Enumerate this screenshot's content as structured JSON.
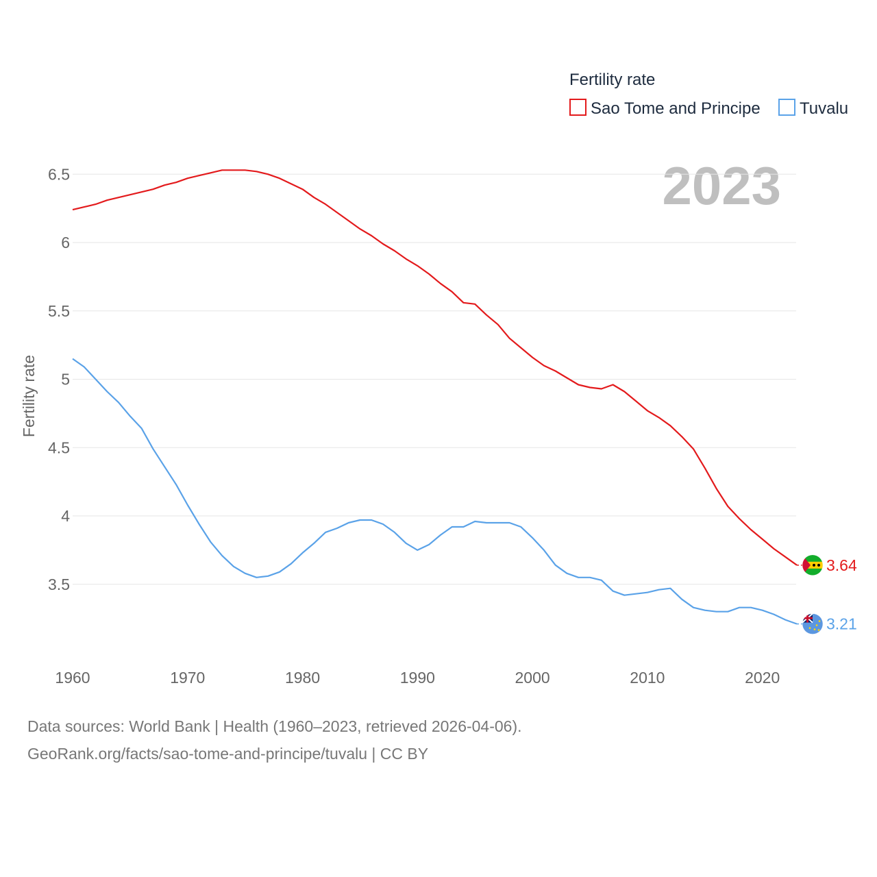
{
  "chart_data": {
    "type": "line",
    "legend_title": "Fertility rate",
    "legend_position": "top-right",
    "ylabel": "Fertility rate",
    "current_year": "2023",
    "xlim": [
      1960,
      2023
    ],
    "ylim": [
      3.0,
      6.6
    ],
    "x_ticks": [
      1960,
      1970,
      1980,
      1990,
      2000,
      2010,
      2020
    ],
    "y_ticks": [
      3.5,
      4,
      4.5,
      5,
      5.5,
      6,
      6.5
    ],
    "y_tick_labels": [
      "3.5",
      "4",
      "4.5",
      "5",
      "5.5",
      "6",
      "6.5"
    ],
    "x": [
      1960,
      1961,
      1962,
      1963,
      1964,
      1965,
      1966,
      1967,
      1968,
      1969,
      1970,
      1971,
      1972,
      1973,
      1974,
      1975,
      1976,
      1977,
      1978,
      1979,
      1980,
      1981,
      1982,
      1983,
      1984,
      1985,
      1986,
      1987,
      1988,
      1989,
      1990,
      1991,
      1992,
      1993,
      1994,
      1995,
      1996,
      1997,
      1998,
      1999,
      2000,
      2001,
      2002,
      2003,
      2004,
      2005,
      2006,
      2007,
      2008,
      2009,
      2010,
      2011,
      2012,
      2013,
      2014,
      2015,
      2016,
      2017,
      2018,
      2019,
      2020,
      2021,
      2022,
      2023
    ],
    "series": [
      {
        "name": "Sao Tome and Principe",
        "color": "#e31a1c",
        "end_label": "3.64",
        "flag": "sao-tome-flag",
        "values": [
          6.24,
          6.26,
          6.28,
          6.31,
          6.33,
          6.35,
          6.37,
          6.39,
          6.42,
          6.44,
          6.47,
          6.49,
          6.51,
          6.53,
          6.53,
          6.53,
          6.52,
          6.5,
          6.47,
          6.43,
          6.39,
          6.33,
          6.28,
          6.22,
          6.16,
          6.1,
          6.05,
          5.99,
          5.94,
          5.88,
          5.83,
          5.77,
          5.7,
          5.64,
          5.56,
          5.55,
          5.47,
          5.4,
          5.3,
          5.23,
          5.16,
          5.1,
          5.06,
          5.01,
          4.96,
          4.94,
          4.93,
          4.96,
          4.91,
          4.84,
          4.77,
          4.72,
          4.66,
          4.58,
          4.49,
          4.35,
          4.2,
          4.07,
          3.98,
          3.9,
          3.83,
          3.76,
          3.7,
          3.64
        ]
      },
      {
        "name": "Tuvalu",
        "color": "#5aa2e8",
        "end_label": "3.21",
        "flag": "tuvalu-flag",
        "values": [
          5.15,
          5.09,
          5.0,
          4.91,
          4.83,
          4.73,
          4.64,
          4.49,
          4.36,
          4.23,
          4.08,
          3.94,
          3.81,
          3.71,
          3.63,
          3.58,
          3.55,
          3.56,
          3.59,
          3.65,
          3.73,
          3.8,
          3.88,
          3.91,
          3.95,
          3.97,
          3.97,
          3.94,
          3.88,
          3.8,
          3.75,
          3.79,
          3.86,
          3.92,
          3.92,
          3.96,
          3.95,
          3.95,
          3.95,
          3.92,
          3.84,
          3.75,
          3.64,
          3.58,
          3.55,
          3.55,
          3.53,
          3.45,
          3.42,
          3.43,
          3.44,
          3.46,
          3.47,
          3.39,
          3.33,
          3.31,
          3.3,
          3.3,
          3.33,
          3.33,
          3.31,
          3.28,
          3.24,
          3.21
        ]
      }
    ]
  },
  "footer": {
    "sources": "Data sources: World Bank | Health (1960–2023, retrieved 2026-04-06).",
    "credit": "GeoRank.org/facts/sao-tome-and-principe/tuvalu | CC BY"
  }
}
